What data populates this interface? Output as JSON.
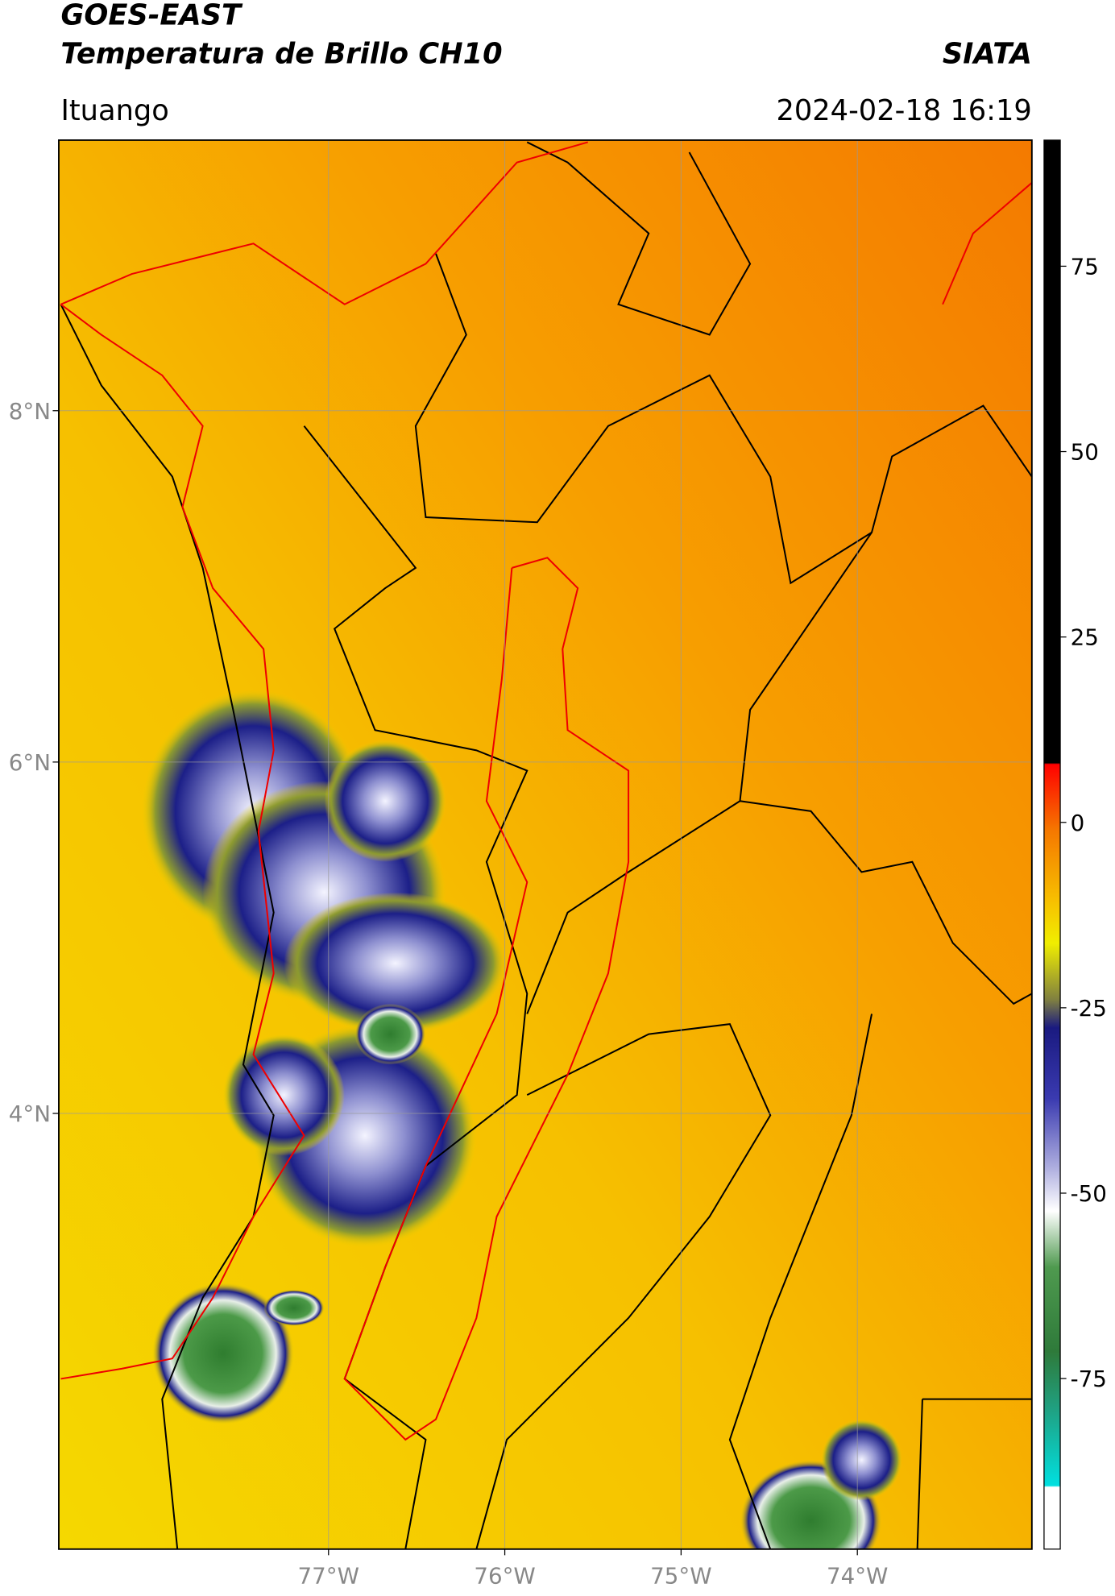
{
  "chart_data": {
    "type": "map",
    "title": "GOES-EAST",
    "subtitle": "Temperatura de Brillo CH10",
    "source": "SIATA",
    "region": "Ituango",
    "datetime": "2024-02-18 16:19",
    "xlim": [
      -78.53,
      -73.01
    ],
    "ylim": [
      1.52,
      9.54
    ],
    "xticks": [
      {
        "value": -77,
        "label": "77°W"
      },
      {
        "value": -76,
        "label": "76°W"
      },
      {
        "value": -75,
        "label": "75°W"
      },
      {
        "value": -74,
        "label": "74°W"
      }
    ],
    "yticks": [
      {
        "value": 8,
        "label": "8°N"
      },
      {
        "value": 6,
        "label": "6°N"
      },
      {
        "value": 4,
        "label": "4°N"
      }
    ],
    "grid": true,
    "colorbar": {
      "lim": [
        -98,
        92
      ],
      "ticks": [
        75,
        50,
        25,
        0,
        -25,
        -50,
        -75
      ]
    }
  }
}
